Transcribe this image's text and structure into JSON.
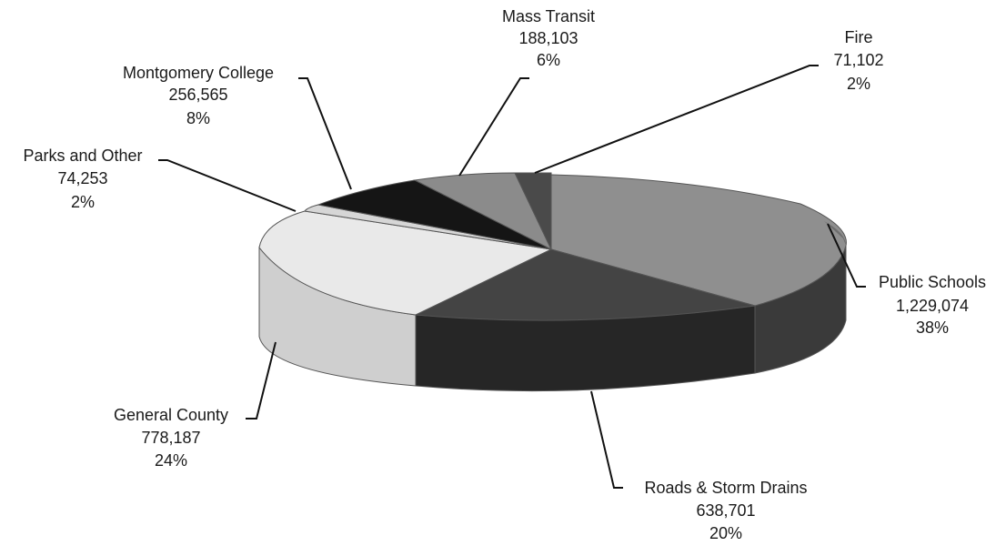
{
  "chart_data": {
    "type": "pie",
    "title": "",
    "style": "3d-exploded",
    "slices": [
      {
        "label": "Public Schools",
        "value": "1,229,074",
        "percent": "38%",
        "amount": 1229074,
        "color": "#8f8f8f",
        "side": "#3a3a3a"
      },
      {
        "label": "Roads & Storm Drains",
        "value": "638,701",
        "percent": "20%",
        "amount": 638701,
        "color": "#444444",
        "side": "#1f1f1f"
      },
      {
        "label": "General County",
        "value": "778,187",
        "percent": "24%",
        "amount": 778187,
        "color": "#e9e9e9",
        "side": "#cfcfcf"
      },
      {
        "label": "Parks and Other",
        "value": "74,253",
        "percent": "2%",
        "amount": 74253,
        "color": "#d6d6d6",
        "side": "#b5b5b5"
      },
      {
        "label": "Montgomery College",
        "value": "256,565",
        "percent": "8%",
        "amount": 256565,
        "color": "#151515",
        "side": "#0a0a0a"
      },
      {
        "label": "Mass Transit",
        "value": "188,103",
        "percent": "6%",
        "amount": 188103,
        "color": "#8b8b8b",
        "side": "#5e5e5e"
      },
      {
        "label": "Fire",
        "value": "71,102",
        "percent": "2%",
        "amount": 71102,
        "color": "#4a4a4a",
        "side": "#2a2a2a"
      }
    ],
    "legend": "none",
    "labels": "outside-with-leader-lines"
  }
}
